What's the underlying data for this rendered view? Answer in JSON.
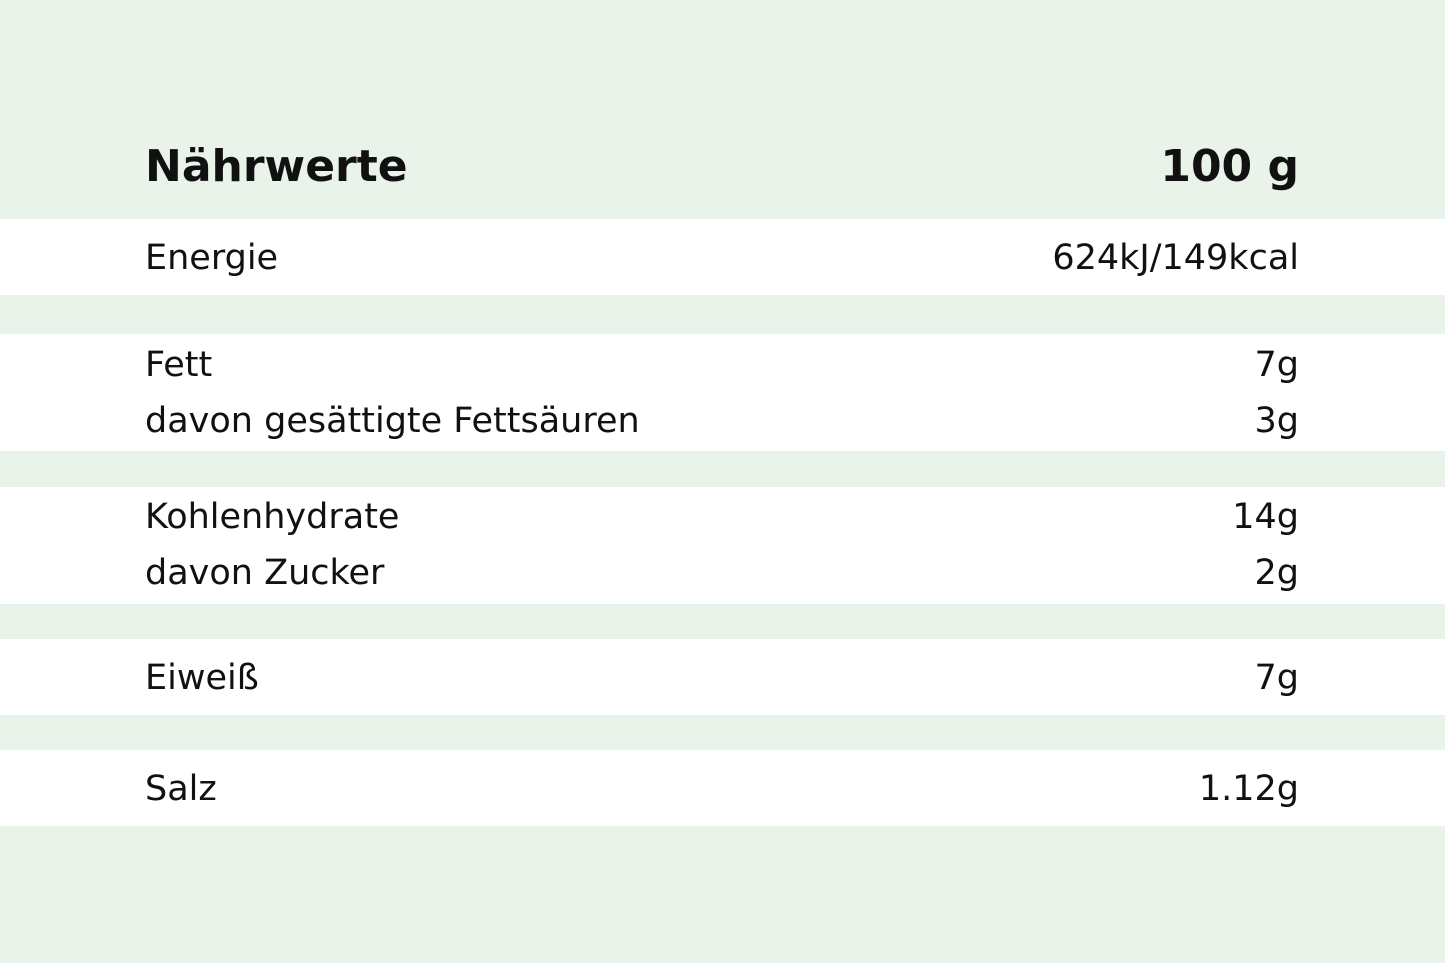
{
  "colors": {
    "background": "#e9f3ea",
    "band": "#ffffff",
    "text": "#111111"
  },
  "header": {
    "label": "Nährwerte",
    "value": "100 g"
  },
  "rows": [
    {
      "label": "Energie",
      "value": "624kJ/149kcal"
    },
    {
      "label": "Fett",
      "value": "7g"
    },
    {
      "label": "davon gesättigte Fettsäuren",
      "value": "3g"
    },
    {
      "label": "Kohlenhydrate",
      "value": "14g"
    },
    {
      "label": "davon Zucker",
      "value": "2g"
    },
    {
      "label": "Eiweiß",
      "value": "7g"
    },
    {
      "label": "Salz",
      "value": "1.12g"
    }
  ]
}
